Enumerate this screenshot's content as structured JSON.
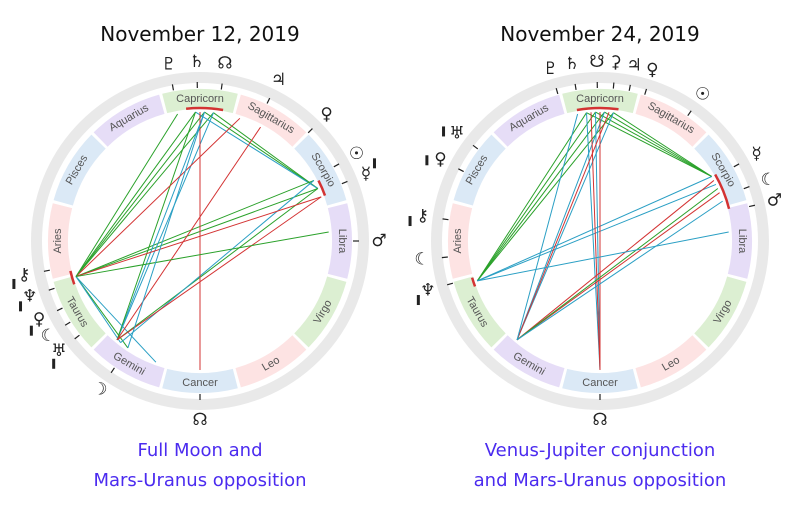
{
  "colors": {
    "ring_outer": "#e9e9e9",
    "aspect_trine": "#2aa12a",
    "aspect_sextile": "#2a9fc4",
    "aspect_square": "#d33333",
    "caption": "#4b2bef",
    "sign_fire": "#fde3e3",
    "sign_earth": "#dcefd2",
    "sign_air": "#e6ddf7",
    "sign_water": "#dbe9f6",
    "marker": "#222222"
  },
  "charts": [
    {
      "title": "November 12, 2019",
      "caption": [
        "Full Moon and",
        "Mars-Uranus opposition"
      ],
      "signs": [
        {
          "name": "Capricorn",
          "color": "#dcefd2"
        },
        {
          "name": "Sagittarius",
          "color": "#fde3e3"
        },
        {
          "name": "Scorpio",
          "color": "#dbe9f6"
        },
        {
          "name": "Libra",
          "color": "#e6ddf7"
        },
        {
          "name": "Virgo",
          "color": "#dcefd2"
        },
        {
          "name": "Leo",
          "color": "#fde3e3"
        },
        {
          "name": "Cancer",
          "color": "#dbe9f6"
        },
        {
          "name": "Gemini",
          "color": "#e6ddf7"
        },
        {
          "name": "Taurus",
          "color": "#dcefd2"
        },
        {
          "name": "Aries",
          "color": "#fde3e3"
        },
        {
          "name": "Pisces",
          "color": "#dbe9f6"
        },
        {
          "name": "Aquarius",
          "color": "#e6ddf7"
        }
      ],
      "planets": [
        {
          "glyph": "♇",
          "name": "pluto-icon",
          "deg": 100,
          "retro": false
        },
        {
          "glyph": "♄",
          "name": "saturn-icon",
          "deg": 91,
          "retro": false
        },
        {
          "glyph": "☊",
          "name": "south-node-icon",
          "deg": 82,
          "retro": false
        },
        {
          "glyph": "♃",
          "name": "jupiter-icon",
          "deg": 64,
          "retro": false
        },
        {
          "glyph": "♀",
          "name": "venus-icon",
          "deg": 45,
          "retro": false
        },
        {
          "glyph": "☉",
          "name": "sun-icon",
          "deg": 29,
          "retro": false
        },
        {
          "glyph": "☿",
          "name": "mercury-icon",
          "deg": 22,
          "retro": true
        },
        {
          "glyph": "♂",
          "name": "mars-icon",
          "deg": 0,
          "retro": false
        },
        {
          "glyph": "♆",
          "name": "neptune-icon",
          "deg": 198,
          "retro": true
        },
        {
          "glyph": "☾",
          "name": "moon-icon",
          "deg": 212,
          "retro": false
        },
        {
          "glyph": "⚷",
          "name": "chiron-icon",
          "deg": 191,
          "retro": true
        },
        {
          "glyph": "♀",
          "name": "ceres-icon",
          "deg": 206,
          "retro": true
        },
        {
          "glyph": "♅",
          "name": "uranus-icon",
          "deg": 218,
          "retro": true
        },
        {
          "glyph": "☽",
          "name": "moon-2-icon",
          "deg": 236,
          "retro": false
        },
        {
          "glyph": "☊",
          "name": "north-node-icon",
          "deg": 270,
          "retro": false
        }
      ],
      "aspects": [
        {
          "from": 84,
          "to": 196,
          "kind": "trine"
        },
        {
          "from": 88,
          "to": 196,
          "kind": "trine"
        },
        {
          "from": 92,
          "to": 196,
          "kind": "trine"
        },
        {
          "from": 84,
          "to": 24,
          "kind": "trine"
        },
        {
          "from": 88,
          "to": 24,
          "kind": "trine"
        },
        {
          "from": 92,
          "to": 24,
          "kind": "sextile"
        },
        {
          "from": 196,
          "to": 24,
          "kind": "trine"
        },
        {
          "from": 196,
          "to": 28,
          "kind": "trine"
        },
        {
          "from": 84,
          "to": 230,
          "kind": "sextile"
        },
        {
          "from": 88,
          "to": 230,
          "kind": "sextile"
        },
        {
          "from": 92,
          "to": 230,
          "kind": "trine"
        },
        {
          "from": 196,
          "to": 250,
          "kind": "sextile"
        },
        {
          "from": 196,
          "to": 236,
          "kind": "trine"
        },
        {
          "from": 196,
          "to": 232,
          "kind": "sextile"
        },
        {
          "from": 24,
          "to": 230,
          "kind": "trine"
        },
        {
          "from": 28,
          "to": 232,
          "kind": "sextile"
        },
        {
          "from": 230,
          "to": 20,
          "kind": "square"
        },
        {
          "from": 230,
          "to": 62,
          "kind": "square"
        },
        {
          "from": 90,
          "to": 270,
          "kind": "square"
        },
        {
          "from": 196,
          "to": 20,
          "kind": "square"
        },
        {
          "from": 72,
          "to": 196,
          "kind": "square"
        },
        {
          "from": 196,
          "to": 4,
          "kind": "trine"
        },
        {
          "from": 100,
          "to": 196,
          "kind": "trine"
        },
        {
          "from": 88,
          "to": 236,
          "kind": "sextile"
        }
      ]
    },
    {
      "title": "November 24, 2019",
      "caption": [
        "Venus-Jupiter conjunction",
        "and Mars-Uranus opposition"
      ],
      "signs": [
        {
          "name": "Capricorn",
          "color": "#dcefd2"
        },
        {
          "name": "Sagittarius",
          "color": "#fde3e3"
        },
        {
          "name": "Scorpio",
          "color": "#dbe9f6"
        },
        {
          "name": "Libra",
          "color": "#e6ddf7"
        },
        {
          "name": "Virgo",
          "color": "#dcefd2"
        },
        {
          "name": "Leo",
          "color": "#fde3e3"
        },
        {
          "name": "Cancer",
          "color": "#dbe9f6"
        },
        {
          "name": "Gemini",
          "color": "#e6ddf7"
        },
        {
          "name": "Taurus",
          "color": "#dcefd2"
        },
        {
          "name": "Aries",
          "color": "#fde3e3"
        },
        {
          "name": "Pisces",
          "color": "#dbe9f6"
        },
        {
          "name": "Aquarius",
          "color": "#e6ddf7"
        }
      ],
      "planets": [
        {
          "glyph": "♇",
          "name": "pluto-icon",
          "deg": 106,
          "retro": false
        },
        {
          "glyph": "♄",
          "name": "saturn-icon",
          "deg": 99,
          "retro": false
        },
        {
          "glyph": "☋",
          "name": "south-node-icon",
          "deg": 91,
          "retro": false
        },
        {
          "glyph": "⚳",
          "name": "ceres-icon",
          "deg": 85,
          "retro": false
        },
        {
          "glyph": "♃",
          "name": "jupiter-icon",
          "deg": 79,
          "retro": false
        },
        {
          "glyph": "♀",
          "name": "venus-icon",
          "deg": 73,
          "retro": false
        },
        {
          "glyph": "☉",
          "name": "sun-icon",
          "deg": 55,
          "retro": false
        },
        {
          "glyph": "☿",
          "name": "mercury-icon",
          "deg": 29,
          "retro": false
        },
        {
          "glyph": "☾",
          "name": "moon-icon",
          "deg": 20,
          "retro": false
        },
        {
          "glyph": "♂",
          "name": "mars-icon",
          "deg": 13,
          "retro": false
        },
        {
          "glyph": "♆",
          "name": "neptune-icon",
          "deg": 196,
          "retro": true
        },
        {
          "glyph": "☾",
          "name": "moon-2-icon",
          "deg": 186,
          "retro": false
        },
        {
          "glyph": "⚷",
          "name": "chiron-icon",
          "deg": 172,
          "retro": true
        },
        {
          "glyph": "♀",
          "name": "ceres-2-icon",
          "deg": 153,
          "retro": true
        },
        {
          "glyph": "♅",
          "name": "uranus-icon",
          "deg": 143,
          "retro": true
        },
        {
          "glyph": "☊",
          "name": "north-node-icon",
          "deg": 270,
          "retro": false
        }
      ],
      "aspects": [
        {
          "from": 84,
          "to": 198,
          "kind": "trine"
        },
        {
          "from": 88,
          "to": 198,
          "kind": "trine"
        },
        {
          "from": 92,
          "to": 198,
          "kind": "trine"
        },
        {
          "from": 96,
          "to": 198,
          "kind": "trine"
        },
        {
          "from": 84,
          "to": 30,
          "kind": "trine"
        },
        {
          "from": 88,
          "to": 30,
          "kind": "trine"
        },
        {
          "from": 92,
          "to": 30,
          "kind": "trine"
        },
        {
          "from": 96,
          "to": 30,
          "kind": "trine"
        },
        {
          "from": 198,
          "to": 30,
          "kind": "sextile"
        },
        {
          "from": 198,
          "to": 26,
          "kind": "sextile"
        },
        {
          "from": 84,
          "to": 230,
          "kind": "sextile"
        },
        {
          "from": 88,
          "to": 230,
          "kind": "sextile"
        },
        {
          "from": 92,
          "to": 270,
          "kind": "sextile"
        },
        {
          "from": 96,
          "to": 270,
          "kind": "sextile"
        },
        {
          "from": 230,
          "to": 22,
          "kind": "square"
        },
        {
          "from": 230,
          "to": 28,
          "kind": "square"
        },
        {
          "from": 230,
          "to": 86,
          "kind": "square"
        },
        {
          "from": 90,
          "to": 270,
          "kind": "square"
        },
        {
          "from": 94,
          "to": 270,
          "kind": "square"
        },
        {
          "from": 230,
          "to": 24,
          "kind": "trine"
        },
        {
          "from": 198,
          "to": 4,
          "kind": "sextile"
        },
        {
          "from": 230,
          "to": 18,
          "kind": "sextile"
        },
        {
          "from": 100,
          "to": 230,
          "kind": "sextile"
        }
      ]
    }
  ]
}
